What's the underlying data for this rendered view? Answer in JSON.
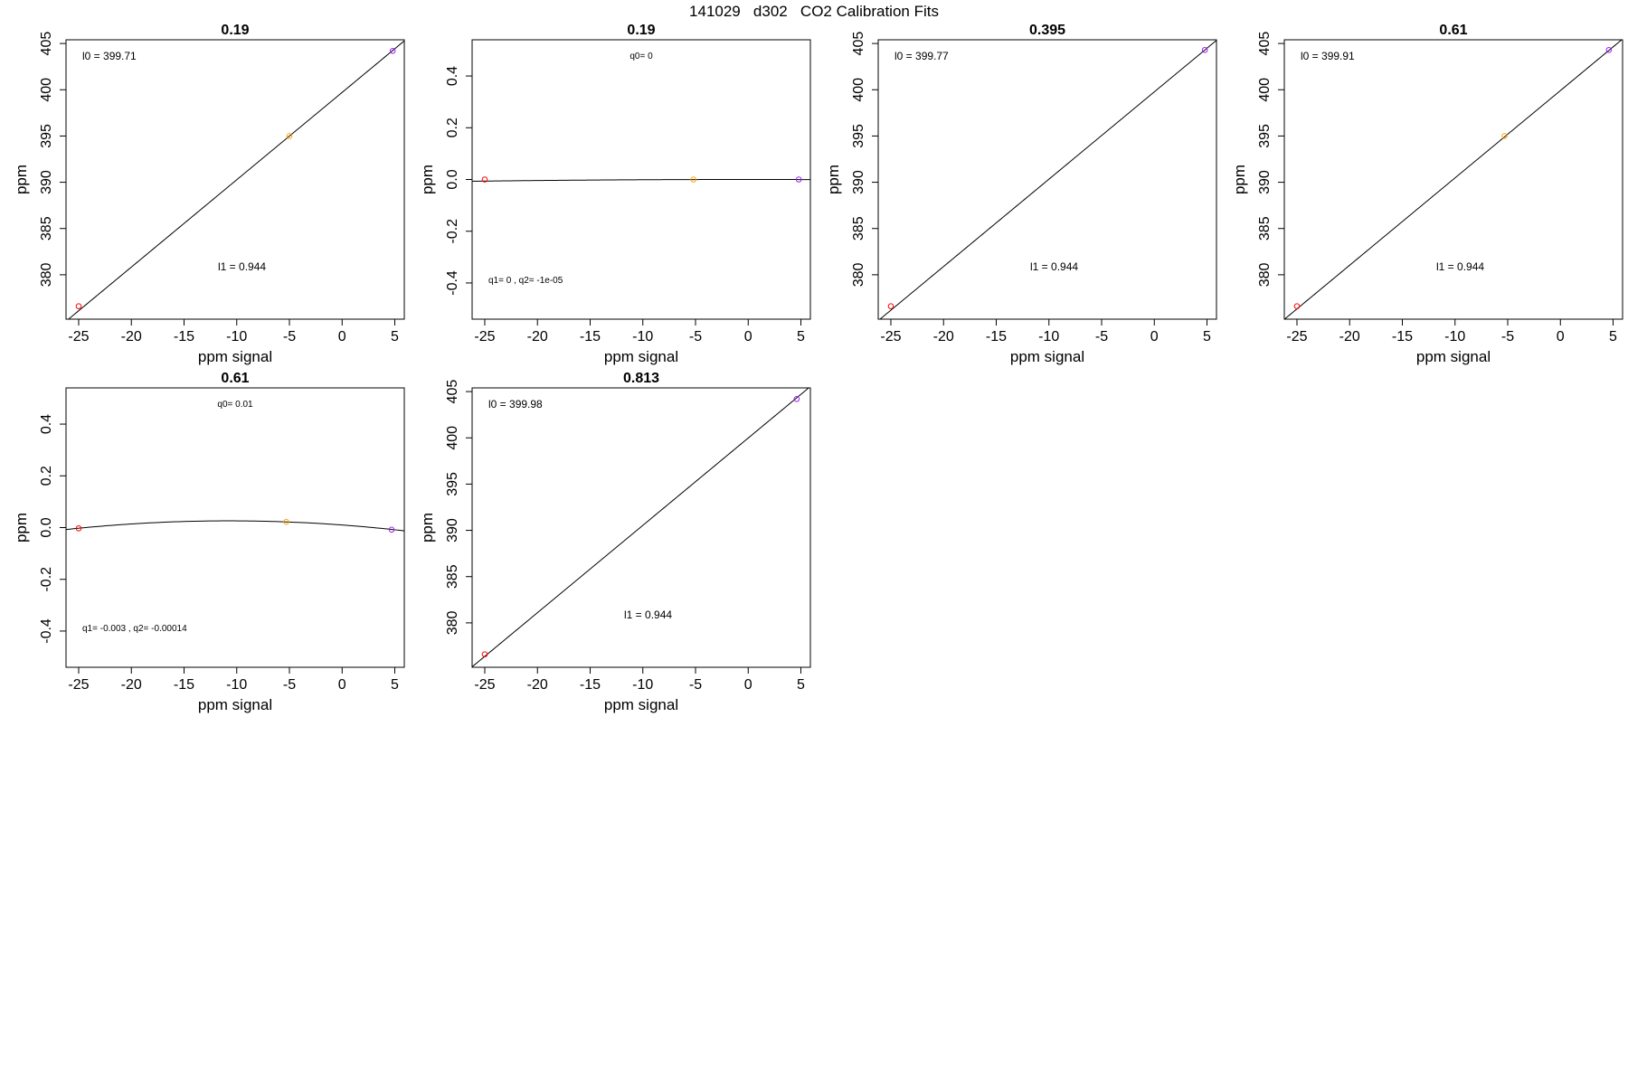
{
  "figure": {
    "title": "141029   d302   CO2 Calibration Fits"
  },
  "chart_data": [
    {
      "type": "line",
      "fit": "linear",
      "title": "0.19",
      "xlabel": "ppm signal",
      "ylabel": "ppm",
      "xlim": [
        -26.2,
        5.9
      ],
      "ylim": [
        375.2,
        405.4
      ],
      "xticks": [
        "-25",
        "-20",
        "-15",
        "-10",
        "-5",
        "0",
        "5"
      ],
      "yticks": [
        "380",
        "385",
        "390",
        "395",
        "400",
        "405"
      ],
      "points": [
        {
          "x": -25.0,
          "y": 376.6,
          "color": "#ff0000"
        },
        {
          "x": -5.0,
          "y": 395.0,
          "color": "#ffa500"
        },
        {
          "x": 4.8,
          "y": 404.2,
          "color": "#a020f0"
        }
      ],
      "coefficients": {
        "l0": 399.71,
        "l1": 0.944
      },
      "annotations": [
        "l0 =  399.71",
        "l1 =  0.944"
      ]
    },
    {
      "type": "line",
      "fit": "quadratic",
      "title": "0.19",
      "xlabel": "ppm signal",
      "ylabel": "ppm",
      "xlim": [
        -26.2,
        5.9
      ],
      "ylim": [
        -0.54,
        0.54
      ],
      "xticks": [
        "-25",
        "-20",
        "-15",
        "-10",
        "-5",
        "0",
        "5"
      ],
      "yticks": [
        "-0.4",
        "-0.2",
        "0.0",
        "0.2",
        "0.4"
      ],
      "points": [
        {
          "x": -25.0,
          "y": 0.0,
          "color": "#ff0000"
        },
        {
          "x": -5.2,
          "y": 0.0,
          "color": "#ffa500"
        },
        {
          "x": 4.8,
          "y": 0.0,
          "color": "#a020f0"
        }
      ],
      "coefficients": {
        "q0": 0,
        "q1": 0,
        "q2": -1e-05
      },
      "annotations": [
        "q0= 0",
        "q1= 0 , q2= -1e-05"
      ]
    },
    {
      "type": "line",
      "fit": "linear",
      "title": "0.395",
      "xlabel": "ppm signal",
      "ylabel": "ppm",
      "xlim": [
        -26.2,
        5.9
      ],
      "ylim": [
        375.2,
        405.4
      ],
      "xticks": [
        "-25",
        "-20",
        "-15",
        "-10",
        "-5",
        "0",
        "5"
      ],
      "yticks": [
        "380",
        "385",
        "390",
        "395",
        "400",
        "405"
      ],
      "points": [
        {
          "x": -25.0,
          "y": 376.6,
          "color": "#ff0000"
        },
        {
          "x": 4.8,
          "y": 404.3,
          "color": "#a020f0"
        }
      ],
      "coefficients": {
        "l0": 399.77,
        "l1": 0.944
      },
      "annotations": [
        "l0 =  399.77",
        "l1 =  0.944"
      ]
    },
    {
      "type": "line",
      "fit": "linear",
      "title": "0.61",
      "xlabel": "ppm signal",
      "ylabel": "ppm",
      "xlim": [
        -26.2,
        5.9
      ],
      "ylim": [
        375.2,
        405.4
      ],
      "xticks": [
        "-25",
        "-20",
        "-15",
        "-10",
        "-5",
        "0",
        "5"
      ],
      "yticks": [
        "380",
        "385",
        "390",
        "395",
        "400",
        "405"
      ],
      "points": [
        {
          "x": -25.0,
          "y": 376.6,
          "color": "#ff0000"
        },
        {
          "x": -5.3,
          "y": 395.0,
          "color": "#ffa500"
        },
        {
          "x": 4.6,
          "y": 404.3,
          "color": "#a020f0"
        }
      ],
      "coefficients": {
        "l0": 399.91,
        "l1": 0.944
      },
      "annotations": [
        "l0 =  399.91",
        "l1 =  0.944"
      ]
    },
    {
      "type": "line",
      "fit": "quadratic",
      "title": "0.61",
      "xlabel": "ppm signal",
      "ylabel": "ppm",
      "xlim": [
        -26.2,
        5.9
      ],
      "ylim": [
        -0.54,
        0.54
      ],
      "xticks": [
        "-25",
        "-20",
        "-15",
        "-10",
        "-5",
        "0",
        "5"
      ],
      "yticks": [
        "-0.4",
        "-0.2",
        "0.0",
        "0.2",
        "0.4"
      ],
      "points": [
        {
          "x": -25.0,
          "y": -0.003,
          "color": "#ff0000"
        },
        {
          "x": -5.3,
          "y": 0.022,
          "color": "#ffa500"
        },
        {
          "x": 4.7,
          "y": -0.008,
          "color": "#a020f0"
        }
      ],
      "coefficients": {
        "q0": 0.01,
        "q1": -0.003,
        "q2": -0.00014
      },
      "annotations": [
        "q0= 0.01",
        "q1= -0.003 , q2= -0.00014"
      ]
    },
    {
      "type": "line",
      "fit": "linear",
      "title": "0.813",
      "xlabel": "ppm signal",
      "ylabel": "ppm",
      "xlim": [
        -26.2,
        5.9
      ],
      "ylim": [
        375.2,
        405.4
      ],
      "xticks": [
        "-25",
        "-20",
        "-15",
        "-10",
        "-5",
        "0",
        "5"
      ],
      "yticks": [
        "380",
        "385",
        "390",
        "395",
        "400",
        "405"
      ],
      "points": [
        {
          "x": -25.0,
          "y": 376.6,
          "color": "#ff0000"
        },
        {
          "x": 4.6,
          "y": 404.2,
          "color": "#a020f0"
        }
      ],
      "coefficients": {
        "l0": 399.98,
        "l1": 0.944
      },
      "annotations": [
        "l0 =  399.98",
        "l1 =  0.944"
      ]
    }
  ]
}
